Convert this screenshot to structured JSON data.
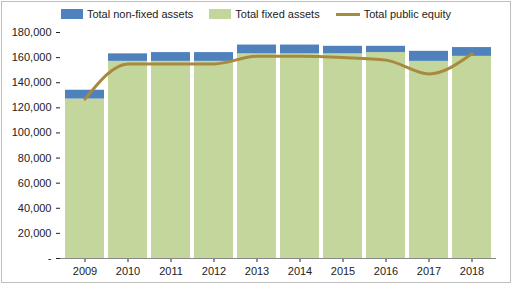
{
  "chart_data": {
    "type": "bar",
    "stacked": true,
    "legend": "top",
    "categories": [
      "2009",
      "2010",
      "2011",
      "2012",
      "2013",
      "2014",
      "2015",
      "2016",
      "2017",
      "2018"
    ],
    "series": [
      {
        "name": "Total non-fixed assets",
        "type": "bar",
        "color": "#4f81bd",
        "values": [
          7000,
          6000,
          7000,
          7000,
          7000,
          7000,
          6000,
          5000,
          8000,
          7000
        ]
      },
      {
        "name": "Total fixed assets",
        "type": "bar",
        "color": "#c3d69b",
        "values": [
          127000,
          157000,
          157000,
          157000,
          163000,
          163000,
          163000,
          164000,
          157000,
          161000
        ]
      },
      {
        "name": "Total public equity",
        "type": "line",
        "line_style": "smooth",
        "color": "#a88a3e",
        "values": [
          127000,
          155000,
          155000,
          155000,
          161000,
          161000,
          160000,
          158000,
          147000,
          163000
        ]
      }
    ],
    "ylim": [
      0,
      180000
    ],
    "yticks": [
      {
        "value": 0,
        "label": "-"
      },
      {
        "value": 20000,
        "label": "20,000"
      },
      {
        "value": 40000,
        "label": "40,000"
      },
      {
        "value": 60000,
        "label": "60,000"
      },
      {
        "value": 80000,
        "label": "80,000"
      },
      {
        "value": 100000,
        "label": "100,000"
      },
      {
        "value": 120000,
        "label": "120,000"
      },
      {
        "value": 140000,
        "label": "140,000"
      },
      {
        "value": 160000,
        "label": "160,000"
      },
      {
        "value": 180000,
        "label": "180,000"
      }
    ],
    "grid": false
  }
}
